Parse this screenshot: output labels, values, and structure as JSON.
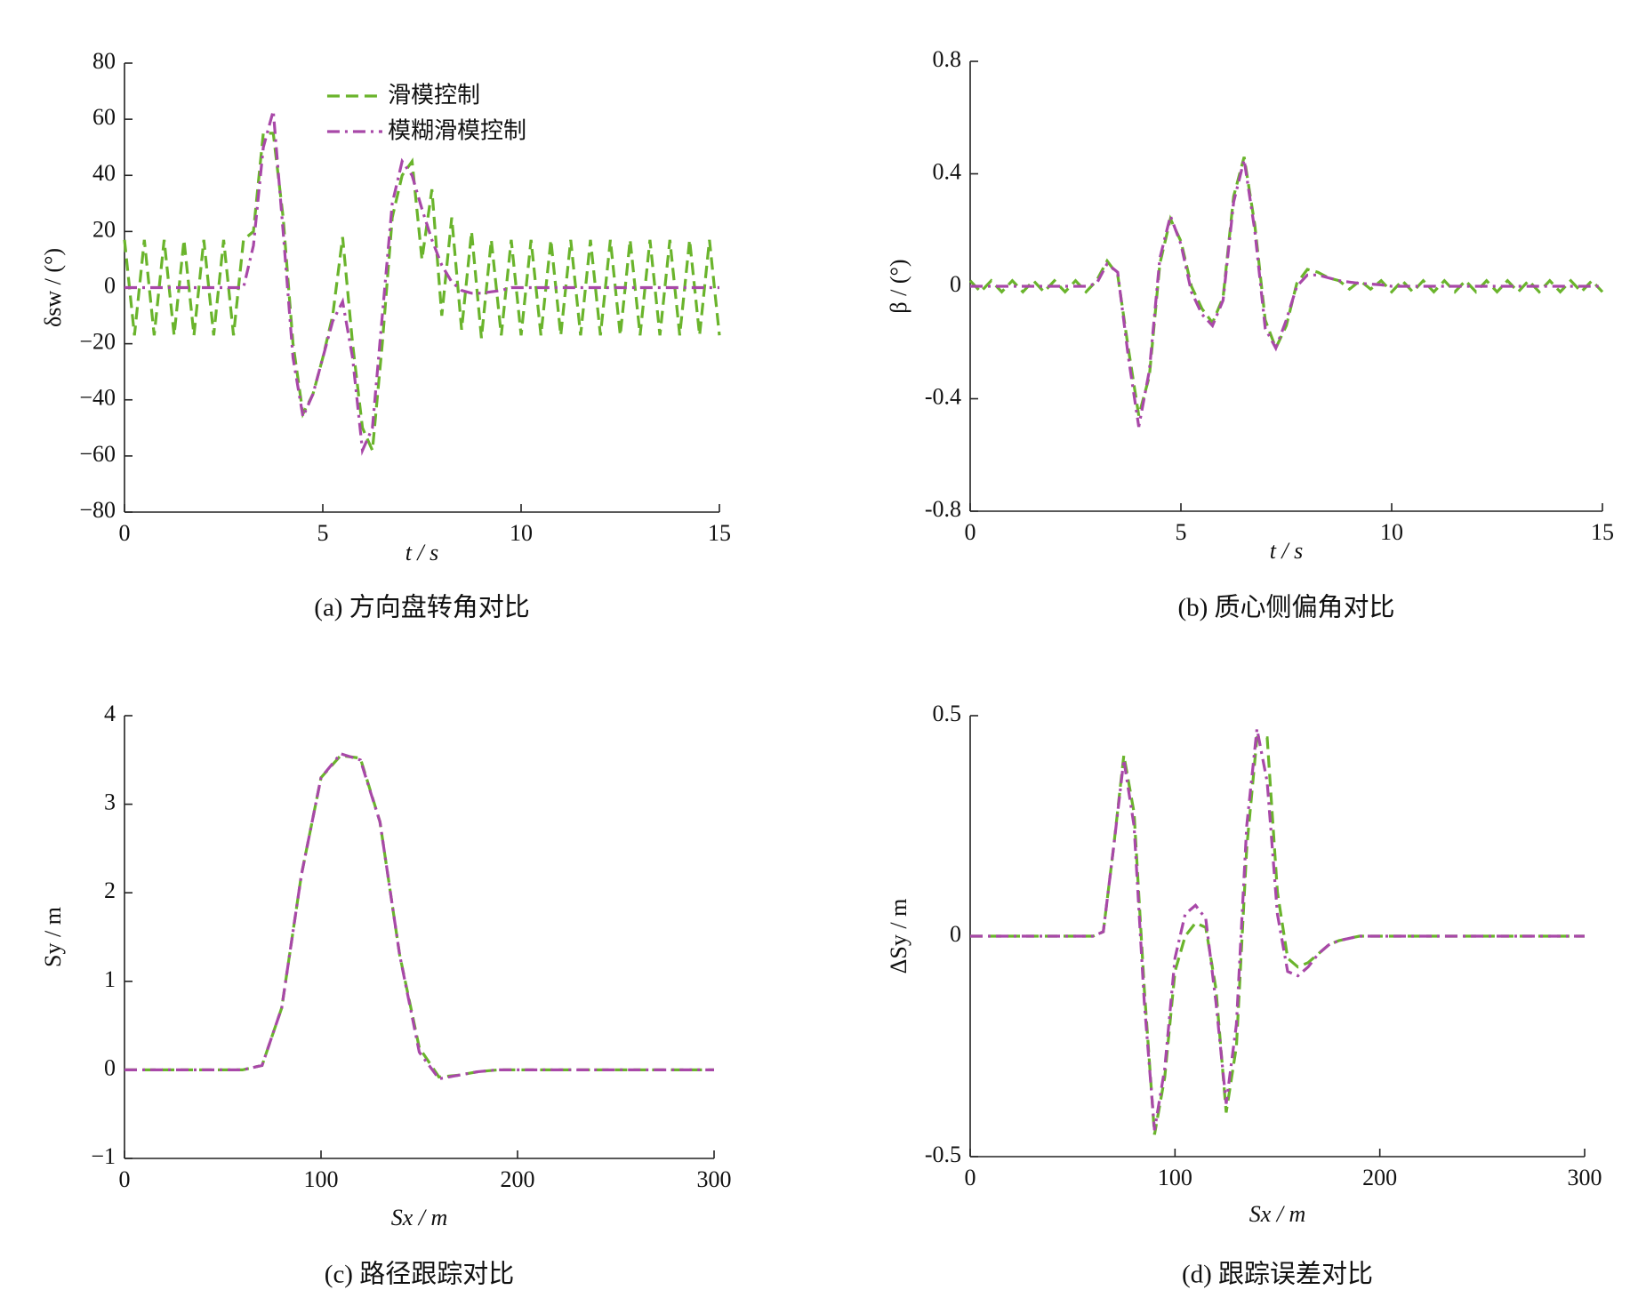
{
  "chart_data": [
    {
      "type": "line",
      "title": "(a)  方向盘转角对比",
      "x_label": "t / s",
      "y_label": "δsw / (°)",
      "xlim": [
        0,
        15
      ],
      "ylim": [
        -80,
        80
      ],
      "xticks": [
        0,
        5,
        10,
        15
      ],
      "yticks": [
        {
          "value": -80,
          "label": "−80"
        },
        {
          "value": -60,
          "label": "−60"
        },
        {
          "value": -40,
          "label": "−40"
        },
        {
          "value": -20,
          "label": "−20"
        },
        0,
        20,
        40,
        60,
        80
      ],
      "legend": "top",
      "x": [
        0,
        0.25,
        0.5,
        0.75,
        1,
        1.25,
        1.5,
        1.75,
        2,
        2.25,
        2.5,
        2.75,
        3,
        3.25,
        3.5,
        3.75,
        4,
        4.25,
        4.5,
        4.75,
        5,
        5.25,
        5.5,
        5.75,
        6,
        6.25,
        6.5,
        6.75,
        7,
        7.25,
        7.5,
        7.75,
        8,
        8.25,
        8.5,
        8.75,
        9,
        9.25,
        9.5,
        9.75,
        10,
        10.25,
        10.5,
        10.75,
        11,
        11.25,
        11.5,
        11.75,
        12,
        12.25,
        12.5,
        12.75,
        13,
        13.25,
        13.5,
        13.75,
        14,
        14.25,
        14.5,
        14.75,
        15
      ],
      "series": [
        {
          "name": "滑模控制",
          "color": "#6ab42c",
          "linestyle": "dashed",
          "values": [
            17,
            -17,
            17,
            -17,
            17,
            -17,
            17,
            -17,
            17,
            -17,
            17,
            -17,
            17,
            20,
            55,
            55,
            25,
            -20,
            -45,
            -38,
            -25,
            -10,
            18,
            -20,
            -50,
            -58,
            -20,
            25,
            40,
            45,
            10,
            35,
            -10,
            25,
            -15,
            20,
            -18,
            17,
            -17,
            17,
            -17,
            17,
            -17,
            17,
            -17,
            17,
            -17,
            17,
            -17,
            17,
            -17,
            17,
            -17,
            17,
            -17,
            17,
            -17,
            17,
            -17,
            17,
            -17
          ]
        },
        {
          "name": "模糊滑模控制",
          "color": "#a848a8",
          "linestyle": "dashdot",
          "values": [
            0,
            0,
            0,
            0,
            0,
            0,
            0,
            0,
            0,
            0,
            0,
            0,
            0,
            15,
            50,
            63,
            20,
            -25,
            -46,
            -38,
            -25,
            -12,
            -5,
            -25,
            -58,
            -50,
            -10,
            30,
            45,
            40,
            28,
            17,
            8,
            2,
            -1,
            -2,
            -2,
            -1.5,
            -1,
            0,
            0,
            0,
            0,
            0,
            0,
            0,
            0,
            0,
            0,
            0,
            0,
            0,
            0,
            0,
            0,
            0,
            0,
            0,
            0,
            0,
            0
          ]
        }
      ]
    },
    {
      "type": "line",
      "title": "(b)  质心侧偏角对比",
      "x_label": "t / s",
      "y_label": "β / (°)",
      "xlim": [
        0,
        15
      ],
      "ylim": [
        -0.8,
        0.8
      ],
      "xticks": [
        0,
        5,
        10,
        15
      ],
      "yticks": [
        -0.8,
        -0.4,
        0,
        0.4,
        0.8
      ],
      "x": [
        0,
        0.25,
        0.5,
        0.75,
        1,
        1.25,
        1.5,
        1.75,
        2,
        2.25,
        2.5,
        2.75,
        3,
        3.25,
        3.5,
        3.75,
        4,
        4.25,
        4.5,
        4.75,
        5,
        5.25,
        5.5,
        5.75,
        6,
        6.25,
        6.5,
        6.75,
        7,
        7.25,
        7.5,
        7.75,
        8,
        8.25,
        8.5,
        8.75,
        9,
        9.25,
        9.5,
        9.75,
        10,
        10.25,
        10.5,
        10.75,
        11,
        11.25,
        11.5,
        11.75,
        12,
        12.25,
        12.5,
        12.75,
        13,
        13.25,
        13.5,
        13.75,
        14,
        14.25,
        14.5,
        14.75,
        15
      ],
      "series": [
        {
          "color": "#6ab42c",
          "linestyle": "dashed",
          "values": [
            0.02,
            -0.02,
            0.02,
            -0.02,
            0.02,
            -0.02,
            0.02,
            -0.02,
            0.02,
            -0.02,
            0.02,
            -0.02,
            0.02,
            0.09,
            0.04,
            -0.22,
            -0.46,
            -0.32,
            0.08,
            0.24,
            0.16,
            0,
            -0.08,
            -0.13,
            -0.04,
            0.32,
            0.46,
            0.22,
            -0.12,
            -0.22,
            -0.14,
            0.01,
            0.06,
            0.05,
            0.03,
            0.02,
            -0.01,
            0.02,
            -0.01,
            0.02,
            -0.02,
            0.02,
            -0.02,
            0.02,
            -0.02,
            0.02,
            -0.02,
            0.02,
            -0.02,
            0.02,
            -0.02,
            0.02,
            -0.02,
            0.02,
            -0.02,
            0.02,
            -0.02,
            0.02,
            -0.02,
            0.02,
            -0.02
          ]
        },
        {
          "color": "#a848a8",
          "linestyle": "dashdot",
          "values": [
            0,
            0,
            0,
            0,
            0,
            0,
            0,
            0,
            0,
            0,
            0,
            0,
            0.01,
            0.08,
            0.05,
            -0.25,
            -0.5,
            -0.3,
            0.1,
            0.25,
            0.15,
            -0.02,
            -0.1,
            -0.14,
            -0.05,
            0.3,
            0.45,
            0.2,
            -0.15,
            -0.22,
            -0.12,
            0,
            0.04,
            0.04,
            0.03,
            0.02,
            0.015,
            0.01,
            0.008,
            0.005,
            0,
            0,
            0,
            0,
            0,
            0,
            0,
            0,
            0,
            0,
            0,
            0,
            0,
            0,
            0,
            0,
            0,
            0,
            0,
            0,
            0
          ]
        }
      ]
    },
    {
      "type": "line",
      "title": "(c)  路径跟踪对比",
      "x_label": "Sx / m",
      "y_label": "Sy / m",
      "xlim": [
        0,
        300
      ],
      "ylim": [
        -1,
        4
      ],
      "xticks": [
        0,
        100,
        200,
        300
      ],
      "yticks": [
        {
          "value": -1,
          "label": "−1"
        },
        0,
        1,
        2,
        3,
        4
      ],
      "x": [
        0,
        10,
        20,
        30,
        40,
        50,
        60,
        70,
        80,
        90,
        100,
        110,
        120,
        130,
        140,
        150,
        160,
        170,
        180,
        190,
        200,
        210,
        220,
        230,
        240,
        250,
        260,
        270,
        280,
        290,
        300
      ],
      "series": [
        {
          "color": "#6ab42c",
          "linestyle": "dashed",
          "values": [
            0,
            0,
            0,
            0,
            0,
            0,
            0,
            0.05,
            0.7,
            2.2,
            3.3,
            3.55,
            3.52,
            2.8,
            1.3,
            0.25,
            -0.08,
            -0.06,
            -0.02,
            0,
            0,
            0,
            0,
            0,
            0,
            0,
            0,
            0,
            0,
            0,
            0
          ]
        },
        {
          "color": "#a848a8",
          "linestyle": "dashdot",
          "values": [
            0,
            0,
            0,
            0,
            0,
            0,
            0,
            0.05,
            0.7,
            2.2,
            3.3,
            3.57,
            3.5,
            2.8,
            1.3,
            0.2,
            -0.1,
            -0.06,
            -0.02,
            0,
            0,
            0,
            0,
            0,
            0,
            0,
            0,
            0,
            0,
            0,
            0
          ]
        }
      ]
    },
    {
      "type": "line",
      "title": "(d)  跟踪误差对比",
      "x_label": "Sx / m",
      "y_label": "ΔSy / m",
      "xlim": [
        0,
        300
      ],
      "ylim": [
        -0.5,
        0.5
      ],
      "xticks": [
        0,
        100,
        200,
        300
      ],
      "yticks": [
        -0.5,
        0,
        0.5
      ],
      "x": [
        0,
        5,
        10,
        15,
        20,
        25,
        30,
        35,
        40,
        45,
        50,
        55,
        60,
        65,
        70,
        75,
        80,
        85,
        90,
        95,
        100,
        105,
        110,
        115,
        120,
        125,
        130,
        135,
        140,
        145,
        150,
        155,
        160,
        165,
        170,
        175,
        180,
        185,
        190,
        195,
        200,
        205,
        210,
        215,
        220,
        225,
        230,
        235,
        240,
        245,
        250,
        255,
        260,
        265,
        270,
        275,
        280,
        285,
        290,
        295,
        300
      ],
      "series": [
        {
          "color": "#6ab42c",
          "linestyle": "dashed",
          "values": [
            0,
            0,
            0,
            0,
            0,
            0,
            0,
            0,
            0,
            0,
            0,
            0,
            0,
            0.01,
            0.2,
            0.41,
            0.28,
            -0.12,
            -0.45,
            -0.32,
            -0.08,
            0,
            0.03,
            0.02,
            -0.12,
            -0.4,
            -0.25,
            0.2,
            0.45,
            0.45,
            0.1,
            -0.05,
            -0.07,
            -0.06,
            -0.04,
            -0.02,
            -0.01,
            -0.005,
            0,
            0,
            0,
            0,
            0,
            0,
            0,
            0,
            0,
            0,
            0,
            0,
            0,
            0,
            0,
            0,
            0,
            0,
            0,
            0,
            0,
            0,
            0
          ]
        },
        {
          "color": "#a848a8",
          "linestyle": "dashdot",
          "values": [
            0,
            0,
            0,
            0,
            0,
            0,
            0,
            0,
            0,
            0,
            0,
            0,
            0,
            0.01,
            0.2,
            0.4,
            0.25,
            -0.15,
            -0.44,
            -0.3,
            -0.05,
            0.05,
            0.07,
            0.04,
            -0.15,
            -0.38,
            -0.2,
            0.25,
            0.47,
            0.35,
            0.05,
            -0.08,
            -0.09,
            -0.07,
            -0.04,
            -0.02,
            -0.01,
            -0.005,
            0,
            0,
            0,
            0,
            0,
            0,
            0,
            0,
            0,
            0,
            0,
            0,
            0,
            0,
            0,
            0,
            0,
            0,
            0,
            0,
            0,
            0,
            0
          ]
        }
      ]
    }
  ]
}
